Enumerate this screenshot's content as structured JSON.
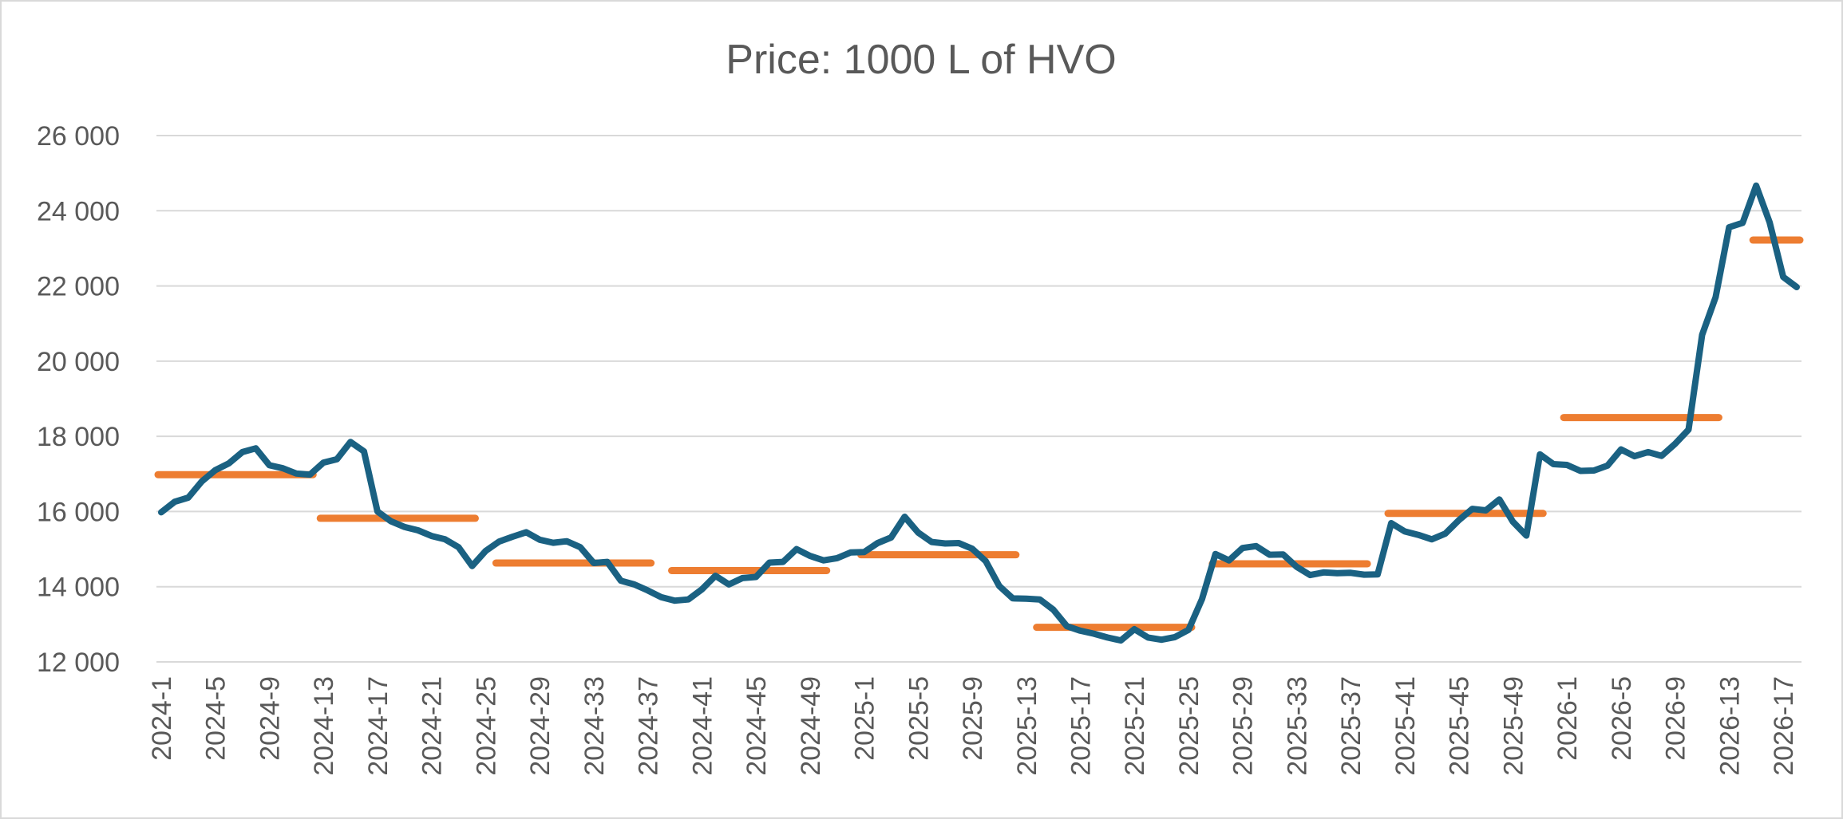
{
  "chart_data": {
    "type": "line",
    "title": "Price: 1000 L of HVO",
    "xlabel": "",
    "ylabel": "",
    "ylim": [
      12000,
      26000
    ],
    "yticks": [
      "12 000",
      "14 000",
      "16 000",
      "18 000",
      "20 000",
      "22 000",
      "24 000",
      "26 000"
    ],
    "grid": true,
    "legend": "none",
    "x": [
      "2024-1",
      "2024-2",
      "2024-3",
      "2024-4",
      "2024-5",
      "2024-6",
      "2024-7",
      "2024-8",
      "2024-9",
      "2024-10",
      "2024-11",
      "2024-12",
      "2024-13",
      "2024-14",
      "2024-15",
      "2024-16",
      "2024-17",
      "2024-18",
      "2024-19",
      "2024-20",
      "2024-21",
      "2024-22",
      "2024-23",
      "2024-24",
      "2024-25",
      "2024-26",
      "2024-27",
      "2024-28",
      "2024-29",
      "2024-30",
      "2024-31",
      "2024-32",
      "2024-33",
      "2024-34",
      "2024-35",
      "2024-36",
      "2024-37",
      "2024-38",
      "2024-39",
      "2024-40",
      "2024-41",
      "2024-42",
      "2024-43",
      "2024-44",
      "2024-45",
      "2024-46",
      "2024-47",
      "2024-48",
      "2024-49",
      "2024-50",
      "2024-51",
      "2024-52",
      "2025-1",
      "2025-2",
      "2025-3",
      "2025-4",
      "2025-5",
      "2025-6",
      "2025-7",
      "2025-8",
      "2025-9",
      "2025-10",
      "2025-11",
      "2025-12",
      "2025-13",
      "2025-14",
      "2025-15",
      "2025-16",
      "2025-17",
      "2025-18",
      "2025-19",
      "2025-20",
      "2025-21",
      "2025-22",
      "2025-23",
      "2025-24",
      "2025-25",
      "2025-26",
      "2025-27",
      "2025-28",
      "2025-29",
      "2025-30",
      "2025-31",
      "2025-32",
      "2025-33",
      "2025-34",
      "2025-35",
      "2025-36",
      "2025-37",
      "2025-38",
      "2025-39",
      "2025-40",
      "2025-41",
      "2025-42",
      "2025-43",
      "2025-44",
      "2025-45",
      "2025-46",
      "2025-47",
      "2025-48",
      "2025-49",
      "2025-50",
      "2025-51",
      "2025-52",
      "2026-1",
      "2026-2",
      "2026-3",
      "2026-4",
      "2026-5",
      "2026-6",
      "2026-7",
      "2026-8",
      "2026-9",
      "2026-10",
      "2026-11",
      "2026-12",
      "2026-13",
      "2026-14",
      "2026-15",
      "2026-16",
      "2026-17",
      "2026-18"
    ],
    "xtick_labels": [
      "2024-1",
      "2024-5",
      "2024-9",
      "2024-13",
      "2024-17",
      "2024-21",
      "2024-25",
      "2024-29",
      "2024-33",
      "2024-37",
      "2024-41",
      "2024-45",
      "2024-49",
      "2025-1",
      "2025-5",
      "2025-9",
      "2025-13",
      "2025-17",
      "2025-21",
      "2025-25",
      "2025-29",
      "2025-33",
      "2025-37",
      "2025-41",
      "2025-45",
      "2025-49",
      "2026-1",
      "2026-5",
      "2026-9",
      "2026-13",
      "2026-17"
    ],
    "series": [
      {
        "name": "",
        "color": "#1a6182",
        "style": "line",
        "values": [
          15980,
          16260,
          16370,
          16800,
          17100,
          17280,
          17580,
          17680,
          17230,
          17150,
          17010,
          16980,
          17300,
          17390,
          17850,
          17600,
          16000,
          15740,
          15590,
          15500,
          15350,
          15260,
          15050,
          14550,
          14950,
          15200,
          15330,
          15450,
          15250,
          15170,
          15210,
          15050,
          14630,
          14660,
          14160,
          14060,
          13900,
          13720,
          13630,
          13660,
          13930,
          14290,
          14060,
          14230,
          14260,
          14640,
          14660,
          15000,
          14820,
          14700,
          14760,
          14910,
          14920,
          15160,
          15310,
          15860,
          15440,
          15190,
          15150,
          15160,
          15010,
          14680,
          14020,
          13690,
          13680,
          13660,
          13390,
          12950,
          12830,
          12750,
          12650,
          12570,
          12870,
          12650,
          12590,
          12660,
          12850,
          13670,
          14870,
          14700,
          15030,
          15080,
          14850,
          14860,
          14530,
          14310,
          14380,
          14360,
          14370,
          14320,
          14330,
          15690,
          15470,
          15380,
          15260,
          15410,
          15770,
          16070,
          16030,
          16320,
          15730,
          15360,
          17520,
          17260,
          17240,
          17080,
          17090,
          17220,
          17650,
          17470,
          17580,
          17480,
          17800,
          18180,
          20700,
          21700,
          23560,
          23680,
          24670,
          23690,
          22240,
          21970
        ]
      },
      {
        "name": "",
        "color": "#ed7d31",
        "style": "period-average",
        "segments": [
          {
            "from": "2024-1",
            "to": "2024-12",
            "value": 16980
          },
          {
            "from": "2024-13",
            "to": "2024-24",
            "value": 15820
          },
          {
            "from": "2024-26",
            "to": "2024-37",
            "value": 14630
          },
          {
            "from": "2024-39",
            "to": "2024-50",
            "value": 14430
          },
          {
            "from": "2025-1",
            "to": "2025-12",
            "value": 14850
          },
          {
            "from": "2025-14",
            "to": "2025-25",
            "value": 12920
          },
          {
            "from": "2025-27",
            "to": "2025-38",
            "value": 14610
          },
          {
            "from": "2025-40",
            "to": "2025-51",
            "value": 15950
          },
          {
            "from": "2026-1",
            "to": "2026-12",
            "value": 18500
          },
          {
            "from": "2026-15",
            "to": "2026-18",
            "value": 23220
          }
        ]
      }
    ]
  }
}
